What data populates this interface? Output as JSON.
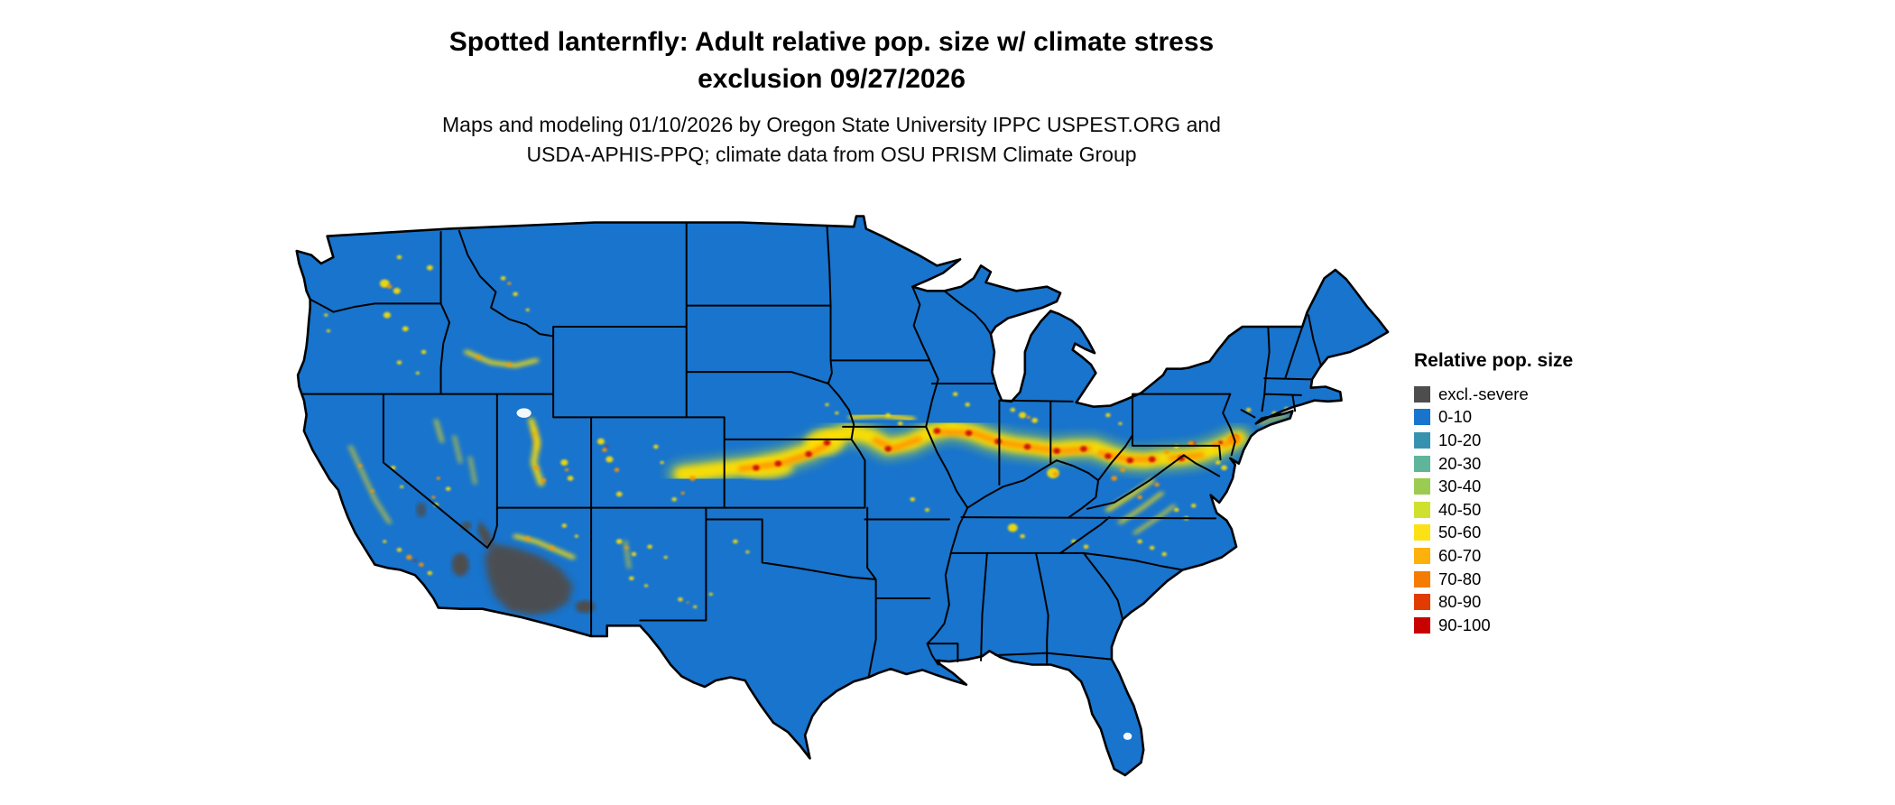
{
  "title": {
    "line1": "Spotted lanternfly: Adult relative pop. size w/ climate stress",
    "line2": "exclusion 09/27/2026"
  },
  "subtitle": {
    "line1": "Maps and modeling 01/10/2026 by Oregon State University IPPC USPEST.ORG and",
    "line2": "USDA-APHIS-PPQ; climate data from OSU PRISM Climate Group"
  },
  "legend": {
    "title": "Relative pop. size",
    "items": [
      {
        "label": "excl.-severe",
        "color": "#4D4D4D"
      },
      {
        "label": "0-10",
        "color": "#1874CD"
      },
      {
        "label": "10-20",
        "color": "#3792B0"
      },
      {
        "label": "20-30",
        "color": "#5FB59A"
      },
      {
        "label": "30-40",
        "color": "#9CCB52"
      },
      {
        "label": "40-50",
        "color": "#CFE02E"
      },
      {
        "label": "50-60",
        "color": "#FBE116"
      },
      {
        "label": "60-70",
        "color": "#FDB10B"
      },
      {
        "label": "70-80",
        "color": "#F47C00"
      },
      {
        "label": "80-90",
        "color": "#E03C00"
      },
      {
        "label": "90-100",
        "color": "#C80000"
      }
    ]
  },
  "map": {
    "region": "Contiguous United States",
    "base_color": "#1874CD",
    "excluded_color": "#4D4D4D",
    "border_color": "#000000",
    "background_color": "#FFFFFF"
  }
}
